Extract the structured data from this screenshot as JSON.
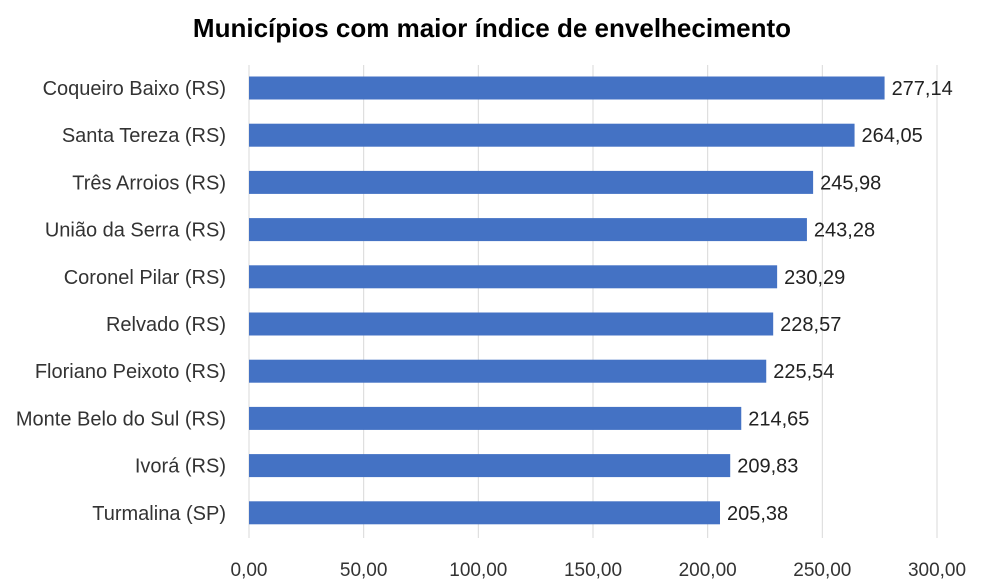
{
  "chart_data": {
    "type": "bar",
    "orientation": "horizontal",
    "title": "Municípios com maior índice de envelhecimento",
    "xlabel": "",
    "ylabel": "",
    "categories": [
      "Coqueiro Baixo (RS)",
      "Santa Tereza (RS)",
      "Três Arroios (RS)",
      "União da Serra (RS)",
      "Coronel Pilar (RS)",
      "Relvado (RS)",
      "Floriano Peixoto (RS)",
      "Monte Belo do Sul (RS)",
      "Ivorá (RS)",
      "Turmalina (SP)"
    ],
    "values": [
      277.14,
      264.05,
      245.98,
      243.28,
      230.29,
      228.57,
      225.54,
      214.65,
      209.83,
      205.38
    ],
    "value_labels": [
      "277,14",
      "264,05",
      "245,98",
      "243,28",
      "230,29",
      "228,57",
      "225,54",
      "214,65",
      "209,83",
      "205,38"
    ],
    "xlim": [
      0,
      300
    ],
    "xticks": [
      0,
      50,
      100,
      150,
      200,
      250,
      300
    ],
    "xtick_labels": [
      "0,00",
      "50,00",
      "100,00",
      "150,00",
      "200,00",
      "250,00",
      "300,00"
    ],
    "grid": "vertical",
    "legend": "none",
    "bar_color": "#4472c4"
  }
}
